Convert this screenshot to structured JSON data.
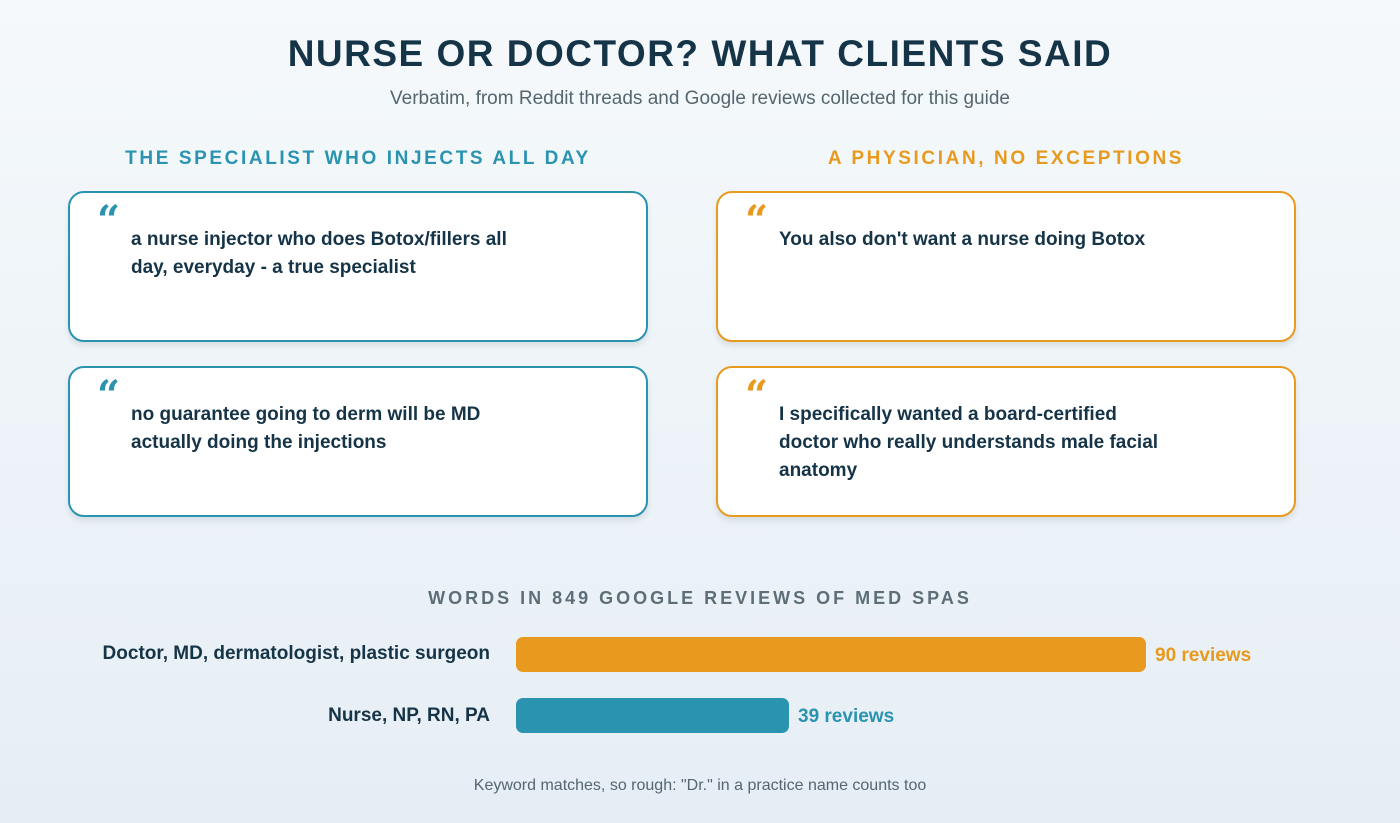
{
  "header": {
    "title": "NURSE OR DOCTOR? WHAT CLIENTS SAID",
    "subtitle": "Verbatim, from Reddit threads and Google reviews collected for this guide"
  },
  "columns": {
    "left": {
      "heading": "THE SPECIALIST WHO INJECTS ALL DAY",
      "color": "#2a93b0",
      "quotes": [
        "a nurse injector who does Botox/fillers all day, everyday - a true specialist",
        "no guarantee going to derm will be MD actually doing the injections"
      ]
    },
    "right": {
      "heading": "A PHYSICIAN, NO EXCEPTIONS",
      "color": "#e89a1f",
      "quotes": [
        "You also don't want a nurse doing Botox",
        "I specifically wanted a board-certified doctor who really understands male facial anatomy"
      ]
    }
  },
  "quote_mark": "“",
  "chart_data": {
    "type": "bar",
    "title": "WORDS IN 849 GOOGLE REVIEWS OF MED SPAS",
    "categories": [
      "Doctor, MD, dermatologist, plastic surgeon",
      "Nurse, NP, RN, PA"
    ],
    "values": [
      90,
      39
    ],
    "value_labels": [
      "90 reviews",
      "39 reviews"
    ],
    "colors": [
      "#e89a1f",
      "#2a93b0"
    ],
    "orientation": "horizontal"
  },
  "footnote": "Keyword matches, so rough: \"Dr.\" in a practice name counts too"
}
